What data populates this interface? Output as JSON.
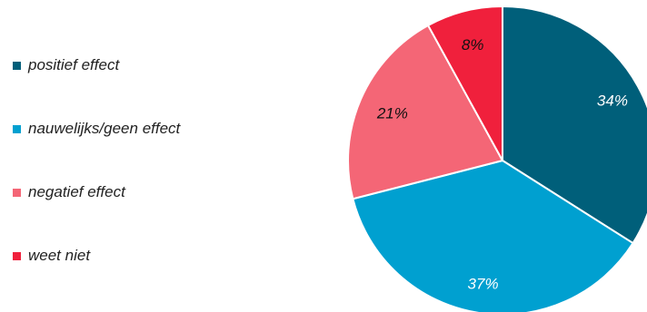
{
  "chart_data": {
    "type": "pie",
    "categories": [
      "positief effect",
      "nauwelijks/geen effect",
      "negatief effect",
      "weet niet"
    ],
    "values": [
      34,
      37,
      21,
      8
    ],
    "labels": [
      "34%",
      "37%",
      "21%",
      "8%"
    ],
    "colors": [
      "#005f7a",
      "#00a0d0",
      "#f46676",
      "#f0203c"
    ],
    "label_colors": [
      "#ffffff",
      "#ffffff",
      "#111111",
      "#111111"
    ],
    "start_angle_deg": 0,
    "direction": "clockwise",
    "legend_position": "left"
  }
}
